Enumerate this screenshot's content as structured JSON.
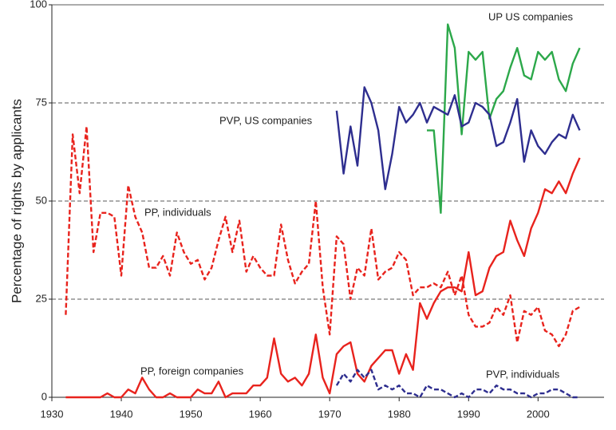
{
  "chart_data": {
    "type": "line",
    "y_label": "Percentage of rights by applicants",
    "xlim": [
      1930,
      2009.5
    ],
    "xticks": [
      1930,
      1940,
      1950,
      1960,
      1970,
      1980,
      1990,
      2000
    ],
    "ylim": [
      0,
      100
    ],
    "yticks": [
      0,
      25,
      50,
      75,
      100
    ],
    "grid": true,
    "series": [
      {
        "name": "UP US companies",
        "color": "#2ca84a",
        "dashed": false,
        "x": [
          1984,
          1985,
          1986,
          1987,
          1988,
          1989,
          1990,
          1991,
          1992,
          1993,
          1994,
          1995,
          1996,
          1997,
          1998,
          1999,
          2000,
          2001,
          2002,
          2003,
          2004,
          2005,
          2006
        ],
        "values": [
          68,
          68,
          47,
          95,
          89,
          67,
          88,
          86,
          88,
          71,
          76,
          78,
          84,
          89,
          82,
          81,
          88,
          86,
          88,
          81,
          78,
          85,
          89
        ]
      },
      {
        "name": "PVP, US companies",
        "color": "#2e2e8f",
        "dashed": false,
        "x": [
          1971,
          1972,
          1973,
          1974,
          1975,
          1976,
          1977,
          1978,
          1979,
          1980,
          1981,
          1982,
          1983,
          1984,
          1985,
          1986,
          1987,
          1988,
          1989,
          1990,
          1991,
          1992,
          1993,
          1994,
          1995,
          1996,
          1997,
          1998,
          1999,
          2000,
          2001,
          2002,
          2003,
          2004,
          2005,
          2006
        ],
        "values": [
          73,
          57,
          69,
          59,
          79,
          75,
          68,
          53,
          62,
          74,
          70,
          72,
          75,
          70,
          74,
          73,
          72,
          77,
          69,
          70,
          75,
          74,
          72,
          64,
          65,
          70,
          76,
          60,
          68,
          64,
          62,
          65,
          67,
          66,
          72,
          68
        ]
      },
      {
        "name": "PP, individuals",
        "color": "#e8231d",
        "dashed": true,
        "x": [
          1932,
          1933,
          1934,
          1935,
          1936,
          1937,
          1938,
          1939,
          1940,
          1941,
          1942,
          1943,
          1944,
          1945,
          1946,
          1947,
          1948,
          1949,
          1950,
          1951,
          1952,
          1953,
          1954,
          1955,
          1956,
          1957,
          1958,
          1959,
          1960,
          1961,
          1962,
          1963,
          1964,
          1965,
          1966,
          1967,
          1968,
          1969,
          1970,
          1971,
          1972,
          1973,
          1974,
          1975,
          1976,
          1977,
          1978,
          1979,
          1980,
          1981,
          1982,
          1983,
          1984,
          1985,
          1986,
          1987,
          1988,
          1989,
          1990,
          1991,
          1992,
          1993,
          1994,
          1995,
          1996,
          1997,
          1998,
          1999,
          2000,
          2001,
          2002,
          2003,
          2004,
          2005,
          2006
        ],
        "values": [
          21,
          67,
          52,
          69,
          37,
          47,
          47,
          46,
          31,
          54,
          46,
          42,
          33,
          33,
          36,
          31,
          42,
          37,
          34,
          35,
          30,
          33,
          40,
          46,
          37,
          45,
          32,
          36,
          33,
          31,
          31,
          44,
          35,
          29,
          32,
          34,
          50,
          28,
          16,
          41,
          39,
          25,
          33,
          31,
          43,
          30,
          32,
          33,
          37,
          35,
          26,
          28,
          28,
          29,
          28,
          32,
          26,
          31,
          21,
          18,
          18,
          19,
          23,
          21,
          26,
          14,
          22,
          21,
          23,
          17,
          16,
          13,
          16,
          22,
          23
        ]
      },
      {
        "name": "PP, foreign companies",
        "color": "#e8231d",
        "dashed": false,
        "x": [
          1932,
          1933,
          1934,
          1935,
          1936,
          1937,
          1938,
          1939,
          1940,
          1941,
          1942,
          1943,
          1944,
          1945,
          1946,
          1947,
          1948,
          1949,
          1950,
          1951,
          1952,
          1953,
          1954,
          1955,
          1956,
          1957,
          1958,
          1959,
          1960,
          1961,
          1962,
          1963,
          1964,
          1965,
          1966,
          1967,
          1968,
          1969,
          1970,
          1971,
          1972,
          1973,
          1974,
          1975,
          1976,
          1977,
          1978,
          1979,
          1980,
          1981,
          1982,
          1983,
          1984,
          1985,
          1986,
          1987,
          1988,
          1989,
          1990,
          1991,
          1992,
          1993,
          1994,
          1995,
          1996,
          1997,
          1998,
          1999,
          2000,
          2001,
          2002,
          2003,
          2004,
          2005,
          2006
        ],
        "values": [
          0,
          0,
          0,
          0,
          0,
          0,
          1,
          0,
          0,
          2,
          1,
          5,
          2,
          0,
          0,
          1,
          0,
          0,
          0,
          2,
          1,
          1,
          4,
          0,
          1,
          1,
          1,
          3,
          3,
          5,
          15,
          6,
          4,
          5,
          3,
          6,
          16,
          5,
          1,
          11,
          13,
          14,
          6,
          4,
          8,
          10,
          12,
          12,
          6,
          11,
          7,
          24,
          20,
          24,
          27,
          28,
          28,
          27,
          37,
          26,
          27,
          33,
          36,
          37,
          45,
          40,
          36,
          43,
          47,
          53,
          52,
          55,
          52,
          57,
          61
        ]
      },
      {
        "name": "PVP, individuals",
        "color": "#2e2e8f",
        "dashed": true,
        "x": [
          1971,
          1972,
          1973,
          1974,
          1975,
          1976,
          1977,
          1978,
          1979,
          1980,
          1981,
          1982,
          1983,
          1984,
          1985,
          1986,
          1987,
          1988,
          1989,
          1990,
          1991,
          1992,
          1993,
          1994,
          1995,
          1996,
          1997,
          1998,
          1999,
          2000,
          2001,
          2002,
          2003,
          2004,
          2005,
          2006
        ],
        "values": [
          3,
          6,
          4,
          7,
          5,
          7,
          2,
          3,
          2,
          3,
          1,
          1,
          0,
          3,
          2,
          2,
          1,
          0,
          1,
          0,
          2,
          2,
          1,
          3,
          2,
          2,
          1,
          1,
          0,
          1,
          1,
          2,
          2,
          1,
          0,
          0
        ]
      }
    ]
  }
}
